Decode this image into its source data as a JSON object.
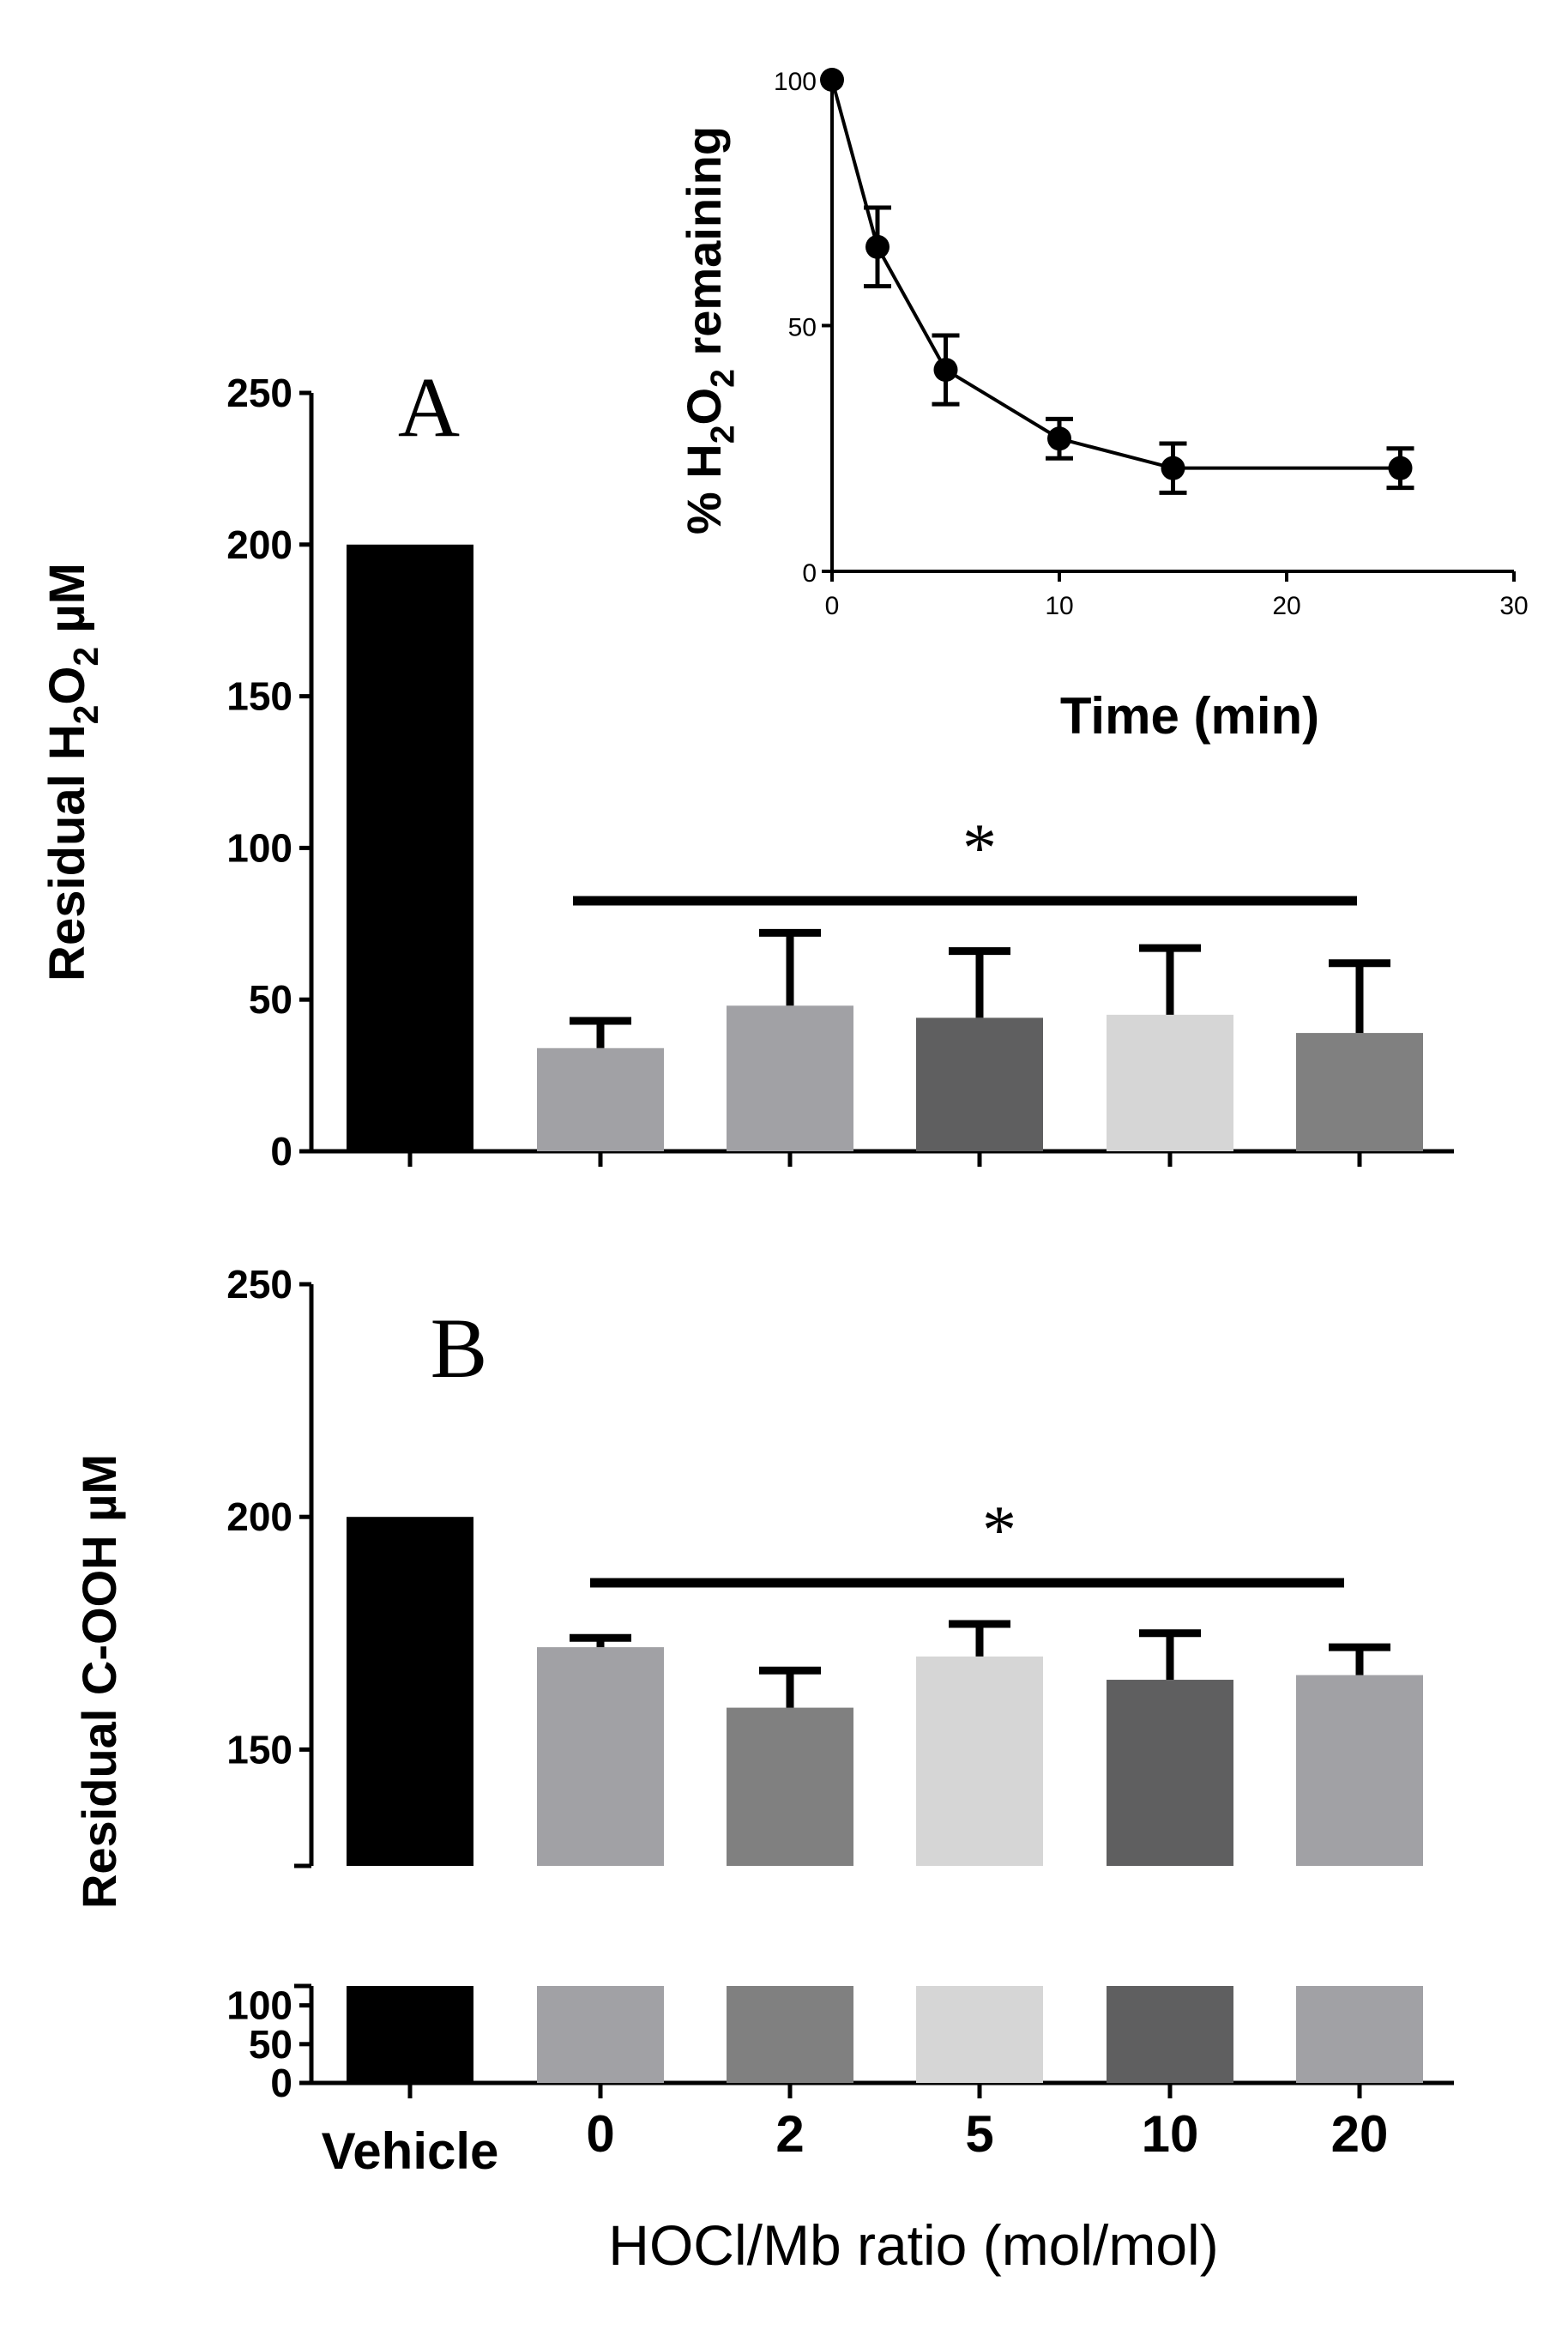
{
  "figure": {
    "x_categories": [
      "Vehicle",
      "0",
      "2",
      "5",
      "10",
      "20"
    ],
    "x_title": "HOCl/Mb ratio (mol/mol)"
  },
  "chart_data": [
    {
      "type": "bar",
      "panel_label": "A",
      "ylabel": "Residual H2O2 µM",
      "ylabel_parts": {
        "pre": "Residual H",
        "sub1": "2",
        "mid": "O",
        "sub2": "2",
        "post": " µM"
      },
      "ylim": [
        0,
        250
      ],
      "yticks": [
        0,
        50,
        100,
        150,
        200,
        250
      ],
      "categories": [
        "Vehicle",
        "0",
        "2",
        "5",
        "10",
        "20"
      ],
      "values": [
        200,
        34,
        48,
        44,
        45,
        39
      ],
      "errors": [
        0,
        9,
        24,
        22,
        22,
        23
      ],
      "colors": [
        "#000000",
        "#a1a1a5",
        "#a1a1a5",
        "#5f5f60",
        "#d6d6d6",
        "#808080"
      ],
      "significance": {
        "label": "*",
        "from_category": "0",
        "to_category": "20"
      }
    },
    {
      "type": "line",
      "panel_label": "",
      "inset": true,
      "xlabel": "Time (min)",
      "ylabel": "% H2O2 remaining",
      "ylabel_parts": {
        "pre": "% H",
        "sub1": "2",
        "mid": "O",
        "sub2": "2",
        "post": " remaining"
      },
      "xlim": [
        0,
        30
      ],
      "ylim": [
        0,
        100
      ],
      "xticks": [
        0,
        10,
        20,
        30
      ],
      "yticks": [
        0,
        50,
        100
      ],
      "x": [
        0,
        2,
        5,
        10,
        15,
        25
      ],
      "y": [
        100,
        66,
        41,
        27,
        21,
        21
      ],
      "errors": [
        0,
        8,
        7,
        4,
        5,
        4
      ]
    },
    {
      "type": "bar",
      "panel_label": "B",
      "ylabel": "Residual C-OOH µM",
      "broken_axis": true,
      "upper_segment": {
        "ylim": [
          125,
          250
        ],
        "yticks": [
          150,
          200,
          250
        ]
      },
      "lower_segment": {
        "ylim": [
          0,
          125
        ],
        "yticks": [
          0,
          50,
          100
        ]
      },
      "categories": [
        "Vehicle",
        "0",
        "2",
        "5",
        "10",
        "20"
      ],
      "values": [
        200,
        172,
        159,
        170,
        165,
        166
      ],
      "errors": [
        0,
        2,
        8,
        7,
        10,
        6
      ],
      "colors": [
        "#000000",
        "#a1a1a5",
        "#808080",
        "#d6d6d6",
        "#5f5f60",
        "#a1a1a5"
      ],
      "significance": {
        "label": "*",
        "from_category": "0",
        "to_category": "20"
      }
    }
  ]
}
